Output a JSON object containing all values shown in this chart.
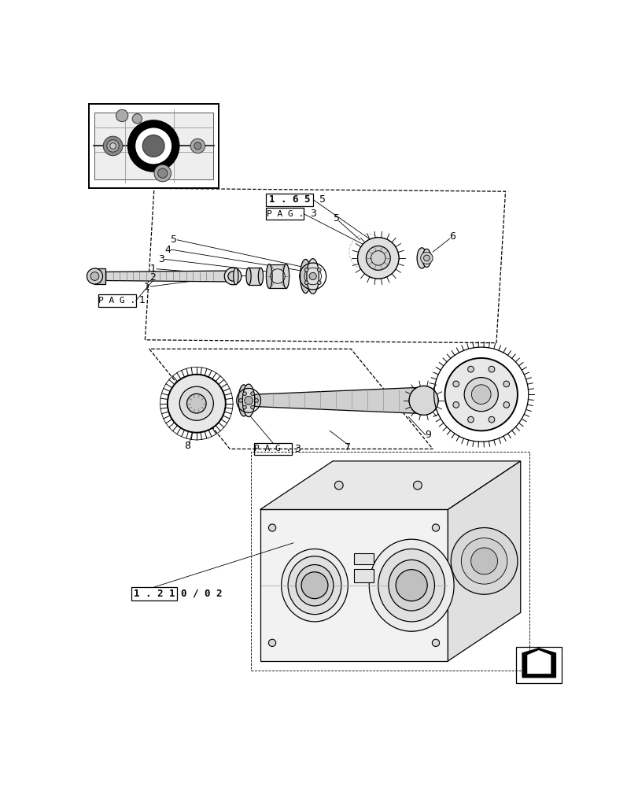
{
  "bg_color": "#ffffff",
  "lc": "#000000",
  "fig_w": 8.12,
  "fig_h": 10.0,
  "labels": {
    "ref_165": "1 . 6 5",
    "ref_165_num": "5",
    "pag_upper": "P A G .",
    "pag_upper_num": "3",
    "pag_left": "P A G .",
    "pag_left_num": "1",
    "pag_lower": "P A G .",
    "pag_lower_num": "3",
    "ref_1210": "1 . 2 1",
    "ref_1210_sfx": "0 / 0 2",
    "n1a": "1",
    "n1b": "1",
    "n2": "2",
    "n3": "3",
    "n4": "4",
    "n5a": "5",
    "n5b": "5",
    "n6": "6",
    "n7": "7",
    "n8": "8",
    "n9": "9"
  }
}
